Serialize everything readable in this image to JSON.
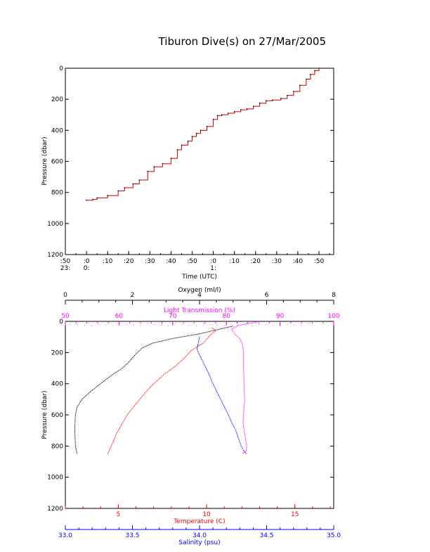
{
  "title": "Tiburon Dive(s) on 27/Mar/2005",
  "colors": {
    "axis": "#000000",
    "trace": "#cc0000",
    "temperature": "#ff0000",
    "salinity": "#0000ff",
    "oxygen": "#000000",
    "light_transmission": "#ff00ff"
  },
  "chart_data": [
    {
      "type": "line",
      "title": "Tiburon Dive(s) on 27/Mar/2005",
      "xlabel": "Time (UTC)",
      "ylabel": "Pressure (dbar)",
      "x_ticks": [
        {
          "min": -10,
          "top": ":50",
          "bottom": "23:"
        },
        {
          "min": 0,
          "top": ":0",
          "bottom": "0:"
        },
        {
          "min": 10,
          "top": ":10",
          "bottom": ""
        },
        {
          "min": 20,
          "top": ":20",
          "bottom": ""
        },
        {
          "min": 30,
          "top": ":30",
          "bottom": ""
        },
        {
          "min": 40,
          "top": ":40",
          "bottom": ""
        },
        {
          "min": 50,
          "top": ":50",
          "bottom": ""
        },
        {
          "min": 60,
          "top": ":0",
          "bottom": "1:"
        },
        {
          "min": 70,
          "top": ":10",
          "bottom": ""
        },
        {
          "min": 80,
          "top": ":20",
          "bottom": ""
        },
        {
          "min": 90,
          "top": ":30",
          "bottom": ""
        },
        {
          "min": 100,
          "top": ":40",
          "bottom": ""
        },
        {
          "min": 110,
          "top": ":50",
          "bottom": ""
        }
      ],
      "xlim": [
        -10,
        117
      ],
      "ylim": [
        1200,
        0
      ],
      "y_ticks": [
        0,
        200,
        400,
        600,
        800,
        1000,
        1200
      ],
      "series": [
        {
          "x": [
            0,
            3,
            5,
            10,
            15,
            18,
            22,
            25,
            29,
            32,
            36,
            40,
            43,
            45,
            48,
            50,
            52,
            54,
            57,
            60,
            62,
            64,
            67,
            70,
            73,
            76,
            79,
            82,
            85,
            88,
            92,
            95,
            98,
            101,
            104,
            106,
            108,
            110
          ],
          "y": [
            850,
            845,
            835,
            820,
            790,
            770,
            745,
            720,
            665,
            635,
            615,
            580,
            525,
            495,
            470,
            440,
            420,
            400,
            375,
            330,
            305,
            300,
            290,
            280,
            268,
            262,
            245,
            225,
            210,
            205,
            195,
            175,
            150,
            110,
            70,
            40,
            15,
            0
          ]
        }
      ]
    },
    {
      "type": "line",
      "ylabel": "Pressure (dbar)",
      "ylim": [
        1200,
        0
      ],
      "y_ticks": [
        0,
        200,
        400,
        600,
        800,
        1000,
        1200
      ],
      "axes": [
        {
          "label": "Oxygen (ml/l)",
          "position": "top",
          "range": [
            0,
            8
          ],
          "ticks": [
            0,
            2,
            4,
            6,
            8
          ]
        },
        {
          "label": "Light Transmission (%)",
          "position": "top",
          "range": [
            50,
            100
          ],
          "ticks": [
            50,
            60,
            70,
            80,
            90,
            100
          ]
        },
        {
          "label": "Temperature (C)",
          "position": "bottom",
          "range": [
            2,
            17.2
          ],
          "ticks": [
            5,
            10,
            15
          ]
        },
        {
          "label": "Salinity (psu)",
          "position": "bottom",
          "range": [
            33.0,
            35.0
          ],
          "ticks": [
            "33.0",
            "33.5",
            "34.0",
            "34.5",
            "35.0"
          ]
        }
      ],
      "series": [
        {
          "axis": "Oxygen (ml/l)",
          "x": [
            5.0,
            4.6,
            4.0,
            3.2,
            2.6,
            2.3,
            2.1,
            1.9,
            1.7,
            1.35,
            1.05,
            0.75,
            0.5,
            0.35,
            0.3,
            0.28,
            0.3,
            0.35
          ],
          "y": [
            30,
            50,
            80,
            110,
            140,
            170,
            210,
            260,
            300,
            350,
            400,
            450,
            500,
            550,
            600,
            700,
            800,
            850
          ]
        },
        {
          "axis": "Light Transmission (%)",
          "x": [
            86,
            85,
            84,
            83,
            82,
            81,
            81.5,
            82.5,
            83,
            83.2,
            83.2,
            83.3,
            83.4,
            83.2,
            83.1,
            83.3,
            83.6,
            83.8,
            83.7,
            83.0
          ],
          "y": [
            0,
            10,
            15,
            20,
            30,
            50,
            80,
            110,
            150,
            200,
            300,
            400,
            500,
            600,
            650,
            700,
            760,
            800,
            830,
            850
          ]
        },
        {
          "axis": "Temperature (C)",
          "x": [
            10.3,
            10.5,
            10.2,
            9.8,
            9.1,
            8.7,
            8.2,
            7.6,
            7.0,
            6.5,
            6.0,
            5.5,
            5.2,
            4.9,
            4.6,
            4.4
          ],
          "y": [
            40,
            60,
            90,
            140,
            190,
            240,
            290,
            340,
            400,
            460,
            530,
            600,
            660,
            720,
            800,
            850
          ]
        },
        {
          "axis": "Salinity (psu)",
          "x": [
            34.0,
            33.98,
            34.02,
            34.06,
            34.1,
            34.14,
            34.18,
            34.21,
            34.24,
            34.27,
            34.29,
            34.31,
            34.33,
            34.35
          ],
          "y": [
            100,
            180,
            250,
            320,
            400,
            470,
            540,
            590,
            650,
            700,
            750,
            800,
            830,
            850
          ]
        }
      ]
    }
  ]
}
